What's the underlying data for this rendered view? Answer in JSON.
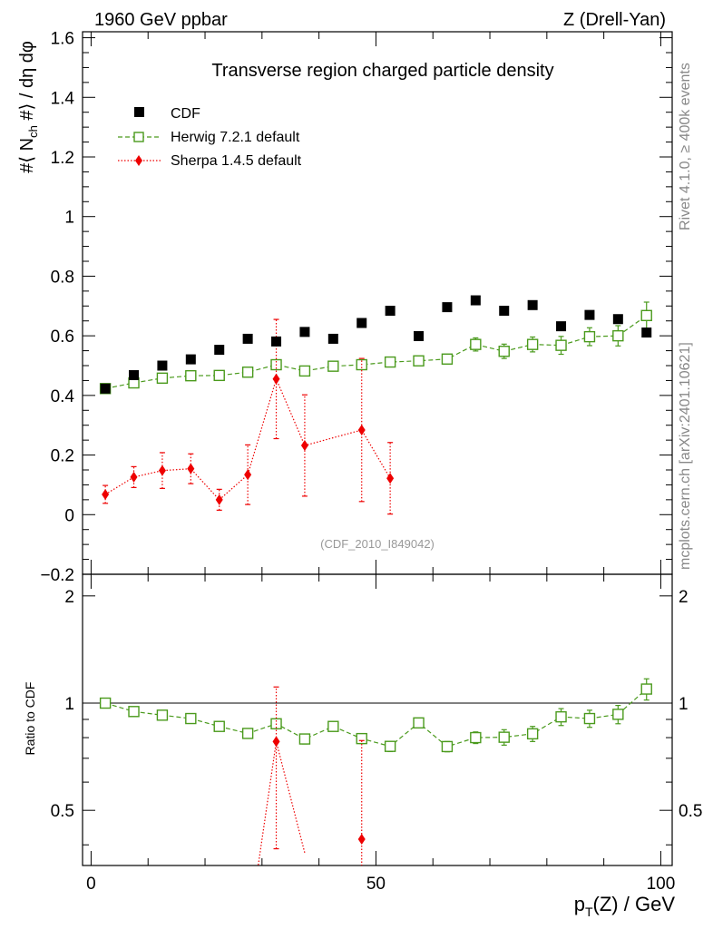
{
  "header": {
    "left": "1960 GeV ppbar",
    "right": "Z (Drell-Yan)"
  },
  "side_labels": {
    "rivet": "Rivet 4.1.0, ≥ 400k events",
    "mcplots": "mcplots.cern.ch [arXiv:2401.10621]"
  },
  "chart_data": [
    {
      "type": "scatter",
      "title": "Transverse region charged particle density",
      "watermark": "(CDF_2010_I849042)",
      "ylabel": "#⟨ N_ch #⟩ / dη dφ",
      "ylim": [
        -0.2,
        1.62
      ],
      "yticks": [
        -0.2,
        0,
        0.2,
        0.4,
        0.6,
        0.8,
        1,
        1.2,
        1.4,
        1.6
      ],
      "ytick_labels": [
        "−0.2",
        "0",
        "0.2",
        "0.4",
        "0.6",
        "0.8",
        "1",
        "1.2",
        "1.4",
        "1.6"
      ],
      "xlim": [
        -1.5,
        102
      ],
      "legend": {
        "position": "top-left",
        "entries": [
          "CDF",
          "Herwig 7.2.1 default",
          "Sherpa 1.4.5 default"
        ]
      },
      "series": [
        {
          "name": "CDF",
          "color": "#000000",
          "marker": "square-filled",
          "x": [
            2.5,
            7.5,
            12.5,
            17.5,
            22.5,
            27.5,
            32.5,
            37.5,
            42.5,
            47.5,
            52.5,
            57.5,
            62.5,
            67.5,
            72.5,
            77.5,
            82.5,
            87.5,
            92.5,
            97.5
          ],
          "y": [
            0.423,
            0.468,
            0.5,
            0.521,
            0.553,
            0.59,
            0.581,
            0.613,
            0.59,
            0.643,
            0.684,
            0.599,
            0.696,
            0.719,
            0.684,
            0.703,
            0.632,
            0.67,
            0.656,
            0.611
          ]
        },
        {
          "name": "Herwig 7.2.1 default",
          "color": "#4a9a1c",
          "marker": "square-open",
          "x": [
            2.5,
            7.5,
            12.5,
            17.5,
            22.5,
            27.5,
            32.5,
            37.5,
            42.5,
            47.5,
            52.5,
            57.5,
            62.5,
            67.5,
            72.5,
            77.5,
            82.5,
            87.5,
            92.5,
            97.5
          ],
          "y": [
            0.423,
            0.442,
            0.458,
            0.466,
            0.467,
            0.478,
            0.503,
            0.482,
            0.498,
            0.503,
            0.512,
            0.516,
            0.522,
            0.571,
            0.548,
            0.571,
            0.568,
            0.597,
            0.6,
            0.668
          ],
          "err": [
            0.008,
            0.01,
            0.01,
            0.011,
            0.012,
            0.012,
            0.014,
            0.014,
            0.014,
            0.015,
            0.015,
            0.015,
            0.016,
            0.022,
            0.024,
            0.025,
            0.03,
            0.03,
            0.034,
            0.045
          ]
        },
        {
          "name": "Sherpa 1.4.5 default",
          "color": "#ee0000",
          "marker": "diamond-filled",
          "x": [
            2.5,
            7.5,
            12.5,
            17.5,
            22.5,
            27.5,
            32.5,
            37.5,
            47.5,
            52.5
          ],
          "y": [
            0.068,
            0.126,
            0.148,
            0.154,
            0.05,
            0.134,
            0.455,
            0.232,
            0.284,
            0.122
          ],
          "err_low": [
            0.03,
            0.035,
            0.06,
            0.05,
            0.035,
            0.1,
            0.2,
            0.17,
            0.24,
            0.12
          ],
          "err_high": [
            0.03,
            0.035,
            0.06,
            0.05,
            0.035,
            0.1,
            0.2,
            0.17,
            0.24,
            0.12
          ]
        }
      ]
    },
    {
      "type": "scatter",
      "ylabel": "Ratio to CDF",
      "xlabel": "p_T(Z) / GeV",
      "ylim": [
        0.35,
        2.3
      ],
      "yscale": "log",
      "reference_line": 1,
      "yticks": [
        0.5,
        1,
        2
      ],
      "ytick_labels": [
        "0.5",
        "1",
        "2"
      ],
      "xlim": [
        -1.5,
        102
      ],
      "xticks": [
        0,
        50,
        100
      ],
      "xtick_labels": [
        "0",
        "50",
        "100"
      ],
      "series": [
        {
          "name": "Herwig 7.2.1 default",
          "color": "#4a9a1c",
          "marker": "square-open",
          "x": [
            2.5,
            7.5,
            12.5,
            17.5,
            22.5,
            27.5,
            32.5,
            37.5,
            42.5,
            47.5,
            52.5,
            57.5,
            62.5,
            67.5,
            72.5,
            77.5,
            82.5,
            87.5,
            92.5,
            97.5
          ],
          "y": [
            1.0,
            0.947,
            0.925,
            0.905,
            0.86,
            0.822,
            0.875,
            0.793,
            0.86,
            0.795,
            0.756,
            0.88,
            0.755,
            0.8,
            0.802,
            0.82,
            0.915,
            0.905,
            0.93,
            1.095
          ],
          "err": [
            0.015,
            0.02,
            0.02,
            0.02,
            0.022,
            0.022,
            0.025,
            0.025,
            0.025,
            0.025,
            0.025,
            0.025,
            0.025,
            0.03,
            0.04,
            0.04,
            0.05,
            0.05,
            0.055,
            0.075
          ]
        },
        {
          "name": "Sherpa 1.4.5 default",
          "color": "#ee0000",
          "marker": "diamond-filled",
          "x": [
            32.5,
            47.5
          ],
          "y": [
            0.78,
            0.415
          ],
          "err_low": [
            0.39,
            0.1
          ],
          "err_high": [
            0.33,
            0.37
          ],
          "segments_from": [
            [
              27.5,
              0.22
            ],
            [
              32.5,
              0.78
            ],
            [
              37.5,
              0.38
            ]
          ]
        }
      ]
    }
  ]
}
